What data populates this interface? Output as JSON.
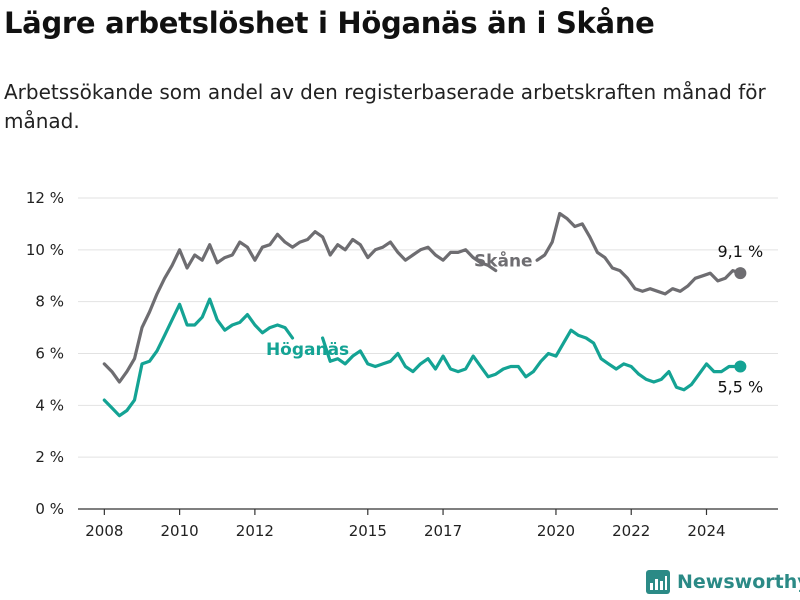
{
  "title": "Lägre arbetslöshet i Höganäs än i Skåne",
  "subtitle": "Arbetssökande som andel av den registerbaserade arbetskraften månad för månad.",
  "brand": {
    "name": "Newsworthy",
    "icon": "bar-chart-logo-icon"
  },
  "colors": {
    "skane": "#6e6d71",
    "hoganas": "#14a394",
    "grid": "#e2e2e2",
    "axis": "#333333"
  },
  "chart_data": {
    "type": "line",
    "title": "Lägre arbetslöshet i Höganäs än i Skåne",
    "xlabel": "",
    "ylabel": "",
    "ylim": [
      0,
      12
    ],
    "xlim": [
      2007.3,
      2025.9
    ],
    "y_ticks": [
      0,
      2,
      4,
      6,
      8,
      10,
      12
    ],
    "y_tick_labels": [
      "0 %",
      "2 %",
      "4 %",
      "6 %",
      "8 %",
      "10 %",
      "12 %"
    ],
    "x_ticks": [
      2008,
      2010,
      2012,
      2015,
      2017,
      2020,
      2022,
      2024
    ],
    "x_tick_labels": [
      "2008",
      "2010",
      "2012",
      "2015",
      "2017",
      "2020",
      "2022",
      "2024"
    ],
    "grid": true,
    "series": [
      {
        "name": "Skåne",
        "label": "Skåne",
        "end_label": "9,1 %",
        "color": "#6e6d71",
        "x": [
          2008.0,
          2008.2,
          2008.4,
          2008.6,
          2008.8,
          2009.0,
          2009.2,
          2009.4,
          2009.6,
          2009.8,
          2010.0,
          2010.2,
          2010.4,
          2010.6,
          2010.8,
          2011.0,
          2011.2,
          2011.4,
          2011.6,
          2011.8,
          2012.0,
          2012.2,
          2012.4,
          2012.6,
          2012.8,
          2013.0,
          2013.2,
          2013.4,
          2013.6,
          2013.8,
          2014.0,
          2014.2,
          2014.4,
          2014.6,
          2014.8,
          2015.0,
          2015.2,
          2015.4,
          2015.6,
          2015.8,
          2016.0,
          2016.2,
          2016.4,
          2016.6,
          2016.8,
          2017.0,
          2017.2,
          2017.4,
          2017.6,
          2017.8,
          2018.0,
          2018.2,
          2018.4,
          null,
          2019.5,
          2019.7,
          2019.9,
          2020.1,
          2020.3,
          2020.5,
          2020.7,
          2020.9,
          2021.1,
          2021.3,
          2021.5,
          2021.7,
          2021.9,
          2022.1,
          2022.3,
          2022.5,
          2022.7,
          2022.9,
          2023.1,
          2023.3,
          2023.5,
          2023.7,
          2023.9,
          2024.1,
          2024.3,
          2024.5,
          2024.7,
          2024.9
        ],
        "values": [
          5.6,
          5.3,
          4.9,
          5.3,
          5.8,
          7.0,
          7.6,
          8.3,
          8.9,
          9.4,
          10.0,
          9.3,
          9.8,
          9.6,
          10.2,
          9.5,
          9.7,
          9.8,
          10.3,
          10.1,
          9.6,
          10.1,
          10.2,
          10.6,
          10.3,
          10.1,
          10.3,
          10.4,
          10.7,
          10.5,
          9.8,
          10.2,
          10.0,
          10.4,
          10.2,
          9.7,
          10.0,
          10.1,
          10.3,
          9.9,
          9.6,
          9.8,
          10.0,
          10.1,
          9.8,
          9.6,
          9.9,
          9.9,
          10.0,
          9.7,
          9.5,
          9.4,
          9.2,
          null,
          9.6,
          9.8,
          10.3,
          11.4,
          11.2,
          10.9,
          11.0,
          10.5,
          9.9,
          9.7,
          9.3,
          9.2,
          8.9,
          8.5,
          8.4,
          8.5,
          8.4,
          8.3,
          8.5,
          8.4,
          8.6,
          8.9,
          9.0,
          9.1,
          8.8,
          8.9,
          9.2,
          9.1
        ]
      },
      {
        "name": "Höganäs",
        "label": "Höganäs",
        "end_label": "5,5 %",
        "color": "#14a394",
        "x": [
          2008.0,
          2008.2,
          2008.4,
          2008.6,
          2008.8,
          2009.0,
          2009.2,
          2009.4,
          2009.6,
          2009.8,
          2010.0,
          2010.2,
          2010.4,
          2010.6,
          2010.8,
          2011.0,
          2011.2,
          2011.4,
          2011.6,
          2011.8,
          2012.0,
          2012.2,
          2012.4,
          2012.6,
          2012.8,
          2013.0,
          null,
          2013.8,
          2014.0,
          2014.2,
          2014.4,
          2014.6,
          2014.8,
          2015.0,
          2015.2,
          2015.4,
          2015.6,
          2015.8,
          2016.0,
          2016.2,
          2016.4,
          2016.6,
          2016.8,
          2017.0,
          2017.2,
          2017.4,
          2017.6,
          2017.8,
          2018.0,
          2018.2,
          2018.4,
          2018.6,
          2018.8,
          2019.0,
          2019.2,
          2019.4,
          2019.6,
          2019.8,
          2020.0,
          2020.2,
          2020.4,
          2020.6,
          2020.8,
          2021.0,
          2021.2,
          2021.4,
          2021.6,
          2021.8,
          2022.0,
          2022.2,
          2022.4,
          2022.6,
          2022.8,
          2023.0,
          2023.2,
          2023.4,
          2023.6,
          2023.8,
          2024.0,
          2024.2,
          2024.4,
          2024.6,
          2024.9
        ],
        "values": [
          4.2,
          3.9,
          3.6,
          3.8,
          4.2,
          5.6,
          5.7,
          6.1,
          6.7,
          7.3,
          7.9,
          7.1,
          7.1,
          7.4,
          8.1,
          7.3,
          6.9,
          7.1,
          7.2,
          7.5,
          7.1,
          6.8,
          7.0,
          7.1,
          7.0,
          6.6,
          null,
          6.6,
          5.7,
          5.8,
          5.6,
          5.9,
          6.1,
          5.6,
          5.5,
          5.6,
          5.7,
          6.0,
          5.5,
          5.3,
          5.6,
          5.8,
          5.4,
          5.9,
          5.4,
          5.3,
          5.4,
          5.9,
          5.5,
          5.1,
          5.2,
          5.4,
          5.5,
          5.5,
          5.1,
          5.3,
          5.7,
          6.0,
          5.9,
          6.4,
          6.9,
          6.7,
          6.6,
          6.4,
          5.8,
          5.6,
          5.4,
          5.6,
          5.5,
          5.2,
          5.0,
          4.9,
          5.0,
          5.3,
          4.7,
          4.6,
          4.8,
          5.2,
          5.6,
          5.3,
          5.3,
          5.5,
          5.5
        ]
      }
    ]
  }
}
